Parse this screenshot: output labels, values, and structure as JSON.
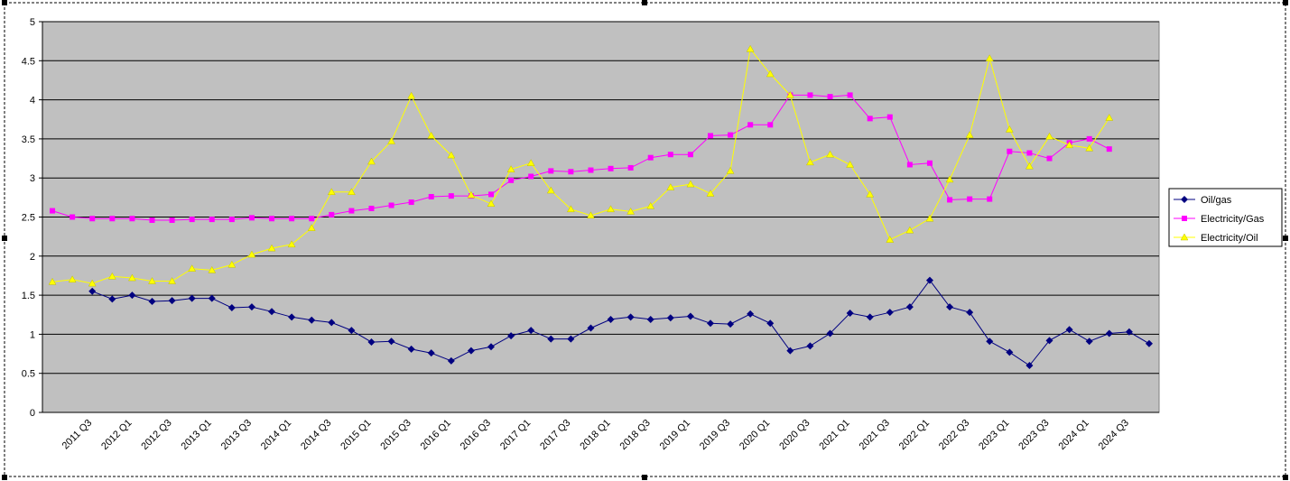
{
  "chart_data": {
    "type": "line",
    "categories": [
      null,
      null,
      "2011 Q3",
      null,
      "2012 Q1",
      null,
      "2012 Q3",
      null,
      "2013 Q1",
      null,
      "2013 Q3",
      null,
      "2014 Q1",
      null,
      "2014 Q3",
      null,
      "2015 Q1",
      null,
      "2015 Q3",
      null,
      "2016 Q1",
      null,
      "2016 Q3",
      null,
      "2017 Q1",
      null,
      "2017 Q3",
      null,
      "2018 Q1",
      null,
      "2018 Q3",
      null,
      "2019 Q1",
      null,
      "2019 Q3",
      null,
      "2020 Q1",
      null,
      "2020 Q3",
      null,
      "2021 Q1",
      null,
      "2021 Q3",
      null,
      "2022 Q1",
      null,
      "2022 Q3",
      null,
      "2023 Q1",
      null,
      "2023 Q3",
      null,
      "2024 Q1",
      null,
      "2024 Q3",
      null
    ],
    "series": [
      {
        "name": "Oil/gas",
        "color": "#000080",
        "marker": "diamond",
        "values": [
          null,
          null,
          1.55,
          1.45,
          1.5,
          1.42,
          1.43,
          1.46,
          1.46,
          1.34,
          1.35,
          1.29,
          1.22,
          1.18,
          1.15,
          1.05,
          0.9,
          0.91,
          0.81,
          0.76,
          0.66,
          0.79,
          0.84,
          0.98,
          1.05,
          0.94,
          0.94,
          1.08,
          1.19,
          1.22,
          1.19,
          1.21,
          1.23,
          1.14,
          1.13,
          1.26,
          1.14,
          0.79,
          0.85,
          1.01,
          1.27,
          1.22,
          1.28,
          1.35,
          1.69,
          1.35,
          1.28,
          0.91,
          0.77,
          0.6,
          0.92,
          1.06,
          0.91,
          1.01,
          1.03,
          0.88
        ]
      },
      {
        "name": "Electricity/Gas",
        "color": "#ff00ff",
        "marker": "square",
        "values": [
          2.58,
          2.5,
          2.48,
          2.48,
          2.48,
          2.46,
          2.46,
          2.47,
          2.47,
          2.47,
          2.49,
          2.48,
          2.48,
          2.48,
          2.53,
          2.58,
          2.61,
          2.65,
          2.69,
          2.76,
          2.77,
          2.77,
          2.79,
          2.97,
          3.02,
          3.09,
          3.08,
          3.1,
          3.12,
          3.13,
          3.26,
          3.3,
          3.3,
          3.54,
          3.55,
          3.68,
          3.68,
          4.06,
          4.06,
          4.04,
          4.06,
          3.76,
          3.78,
          3.17,
          3.19,
          2.72,
          2.73,
          2.73,
          3.34,
          3.32,
          3.25,
          3.45,
          3.5,
          3.37,
          null,
          null
        ]
      },
      {
        "name": "Electricity/Oil",
        "color": "#ffff00",
        "marker": "triangle",
        "values": [
          1.67,
          1.7,
          1.65,
          1.74,
          1.72,
          1.68,
          1.68,
          1.84,
          1.82,
          1.89,
          2.02,
          2.1,
          2.15,
          2.36,
          2.82,
          2.82,
          3.21,
          3.47,
          4.05,
          3.54,
          3.29,
          2.78,
          2.67,
          3.11,
          3.19,
          2.84,
          2.6,
          2.52,
          2.6,
          2.57,
          2.64,
          2.88,
          2.92,
          2.8,
          3.09,
          4.65,
          4.33,
          4.06,
          3.2,
          3.3,
          3.17,
          2.79,
          2.21,
          2.33,
          2.48,
          2.98,
          3.55,
          4.53,
          3.62,
          3.15,
          3.53,
          3.42,
          3.38,
          3.77,
          null,
          null
        ]
      }
    ],
    "ylim": [
      0,
      5
    ],
    "yticks": [
      0,
      0.5,
      1,
      1.5,
      2,
      2.5,
      3,
      3.5,
      4,
      4.5,
      5
    ],
    "grid": true,
    "legend": "right"
  }
}
